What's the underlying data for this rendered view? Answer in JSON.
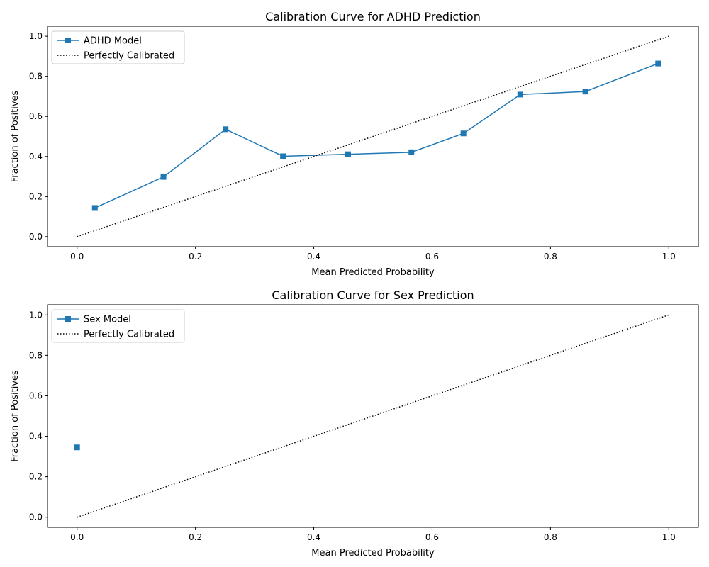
{
  "chart_data": [
    {
      "type": "line",
      "title": "Calibration Curve for ADHD Prediction",
      "xlabel": "Mean Predicted Probability",
      "ylabel": "Fraction of Positives",
      "xlim": [
        -0.05,
        1.05
      ],
      "ylim": [
        -0.05,
        1.05
      ],
      "xticks": [
        "0.0",
        "0.2",
        "0.4",
        "0.6",
        "0.8",
        "1.0"
      ],
      "yticks": [
        "0.0",
        "0.2",
        "0.4",
        "0.6",
        "0.8",
        "1.0"
      ],
      "grid": false,
      "legend_position": "top-left",
      "series": [
        {
          "name": "ADHD Model",
          "color": "#1f77b4",
          "marker": "square",
          "linestyle": "solid",
          "x": [
            0.03,
            0.146,
            0.251,
            0.348,
            0.458,
            0.565,
            0.653,
            0.749,
            0.859,
            0.982
          ],
          "y": [
            0.143,
            0.298,
            0.536,
            0.401,
            0.411,
            0.421,
            0.515,
            0.709,
            0.724,
            0.864
          ]
        },
        {
          "name": "Perfectly Calibrated",
          "color": "#000000",
          "marker": "none",
          "linestyle": "dotted",
          "x": [
            0,
            1
          ],
          "y": [
            0,
            1
          ]
        }
      ]
    },
    {
      "type": "line",
      "title": "Calibration Curve for Sex Prediction",
      "xlabel": "Mean Predicted Probability",
      "ylabel": "Fraction of Positives",
      "xlim": [
        -0.05,
        1.05
      ],
      "ylim": [
        -0.05,
        1.05
      ],
      "xticks": [
        "0.0",
        "0.2",
        "0.4",
        "0.6",
        "0.8",
        "1.0"
      ],
      "yticks": [
        "0.0",
        "0.2",
        "0.4",
        "0.6",
        "0.8",
        "1.0"
      ],
      "grid": false,
      "legend_position": "top-left",
      "series": [
        {
          "name": "Sex Model",
          "color": "#1f77b4",
          "marker": "square",
          "linestyle": "solid",
          "x": [
            0.0
          ],
          "y": [
            0.345
          ]
        },
        {
          "name": "Perfectly Calibrated",
          "color": "#000000",
          "marker": "none",
          "linestyle": "dotted",
          "x": [
            0,
            1
          ],
          "y": [
            0,
            1
          ]
        }
      ]
    }
  ]
}
